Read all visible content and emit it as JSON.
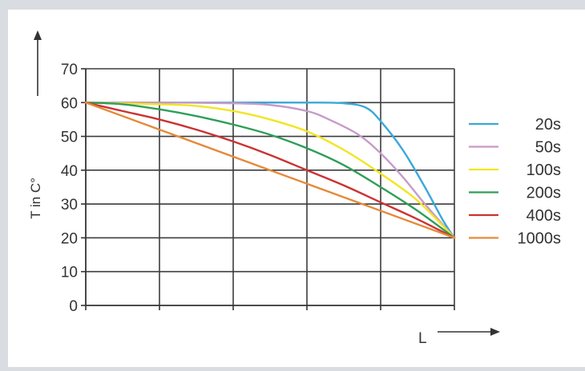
{
  "chart_data": {
    "type": "line",
    "title": "",
    "xlabel": "L",
    "ylabel": "T in C°",
    "ylim": [
      0,
      70
    ],
    "xlim": [
      0,
      5
    ],
    "yticks": [
      0,
      10,
      20,
      30,
      40,
      50,
      60,
      70
    ],
    "grid": true,
    "legend_position": "right",
    "series": [
      {
        "name": "20s",
        "color": "#3aa8d8",
        "x": [
          0,
          1,
          2,
          3,
          3.5,
          3.8,
          4.0,
          4.3,
          4.6,
          4.85,
          5
        ],
        "y": [
          60,
          60,
          60,
          60,
          59.8,
          58.5,
          54.5,
          46,
          35,
          25,
          20
        ]
      },
      {
        "name": "50s",
        "color": "#c79ac8",
        "x": [
          0,
          1,
          2,
          2.5,
          3.0,
          3.3,
          3.7,
          4.0,
          4.3,
          4.6,
          5
        ],
        "y": [
          60,
          60,
          59.8,
          59.3,
          57.5,
          55,
          50.5,
          45,
          38,
          30,
          20
        ]
      },
      {
        "name": "100s",
        "color": "#f2e521",
        "x": [
          0,
          1,
          1.5,
          2.0,
          2.5,
          3.0,
          3.5,
          4.0,
          4.5,
          5
        ],
        "y": [
          60,
          59.5,
          59,
          57.5,
          55,
          51.5,
          46,
          39,
          31,
          20
        ]
      },
      {
        "name": "200s",
        "color": "#2e9e58",
        "x": [
          0,
          0.5,
          1.0,
          1.5,
          2.0,
          2.5,
          3.0,
          3.5,
          4.0,
          4.5,
          5
        ],
        "y": [
          60,
          59.5,
          58,
          56,
          53.5,
          50.5,
          46.5,
          41.5,
          35,
          28,
          20
        ]
      },
      {
        "name": "400s",
        "color": "#cc3232",
        "x": [
          0,
          0.5,
          1.0,
          1.5,
          2.0,
          2.5,
          3.0,
          3.5,
          4.0,
          4.5,
          5
        ],
        "y": [
          60,
          57.5,
          55,
          52,
          48.5,
          44.5,
          40,
          35.5,
          30.5,
          25.5,
          20
        ]
      },
      {
        "name": "1000s",
        "color": "#e58a3a",
        "x": [
          0,
          5
        ],
        "y": [
          60,
          20
        ]
      }
    ]
  }
}
